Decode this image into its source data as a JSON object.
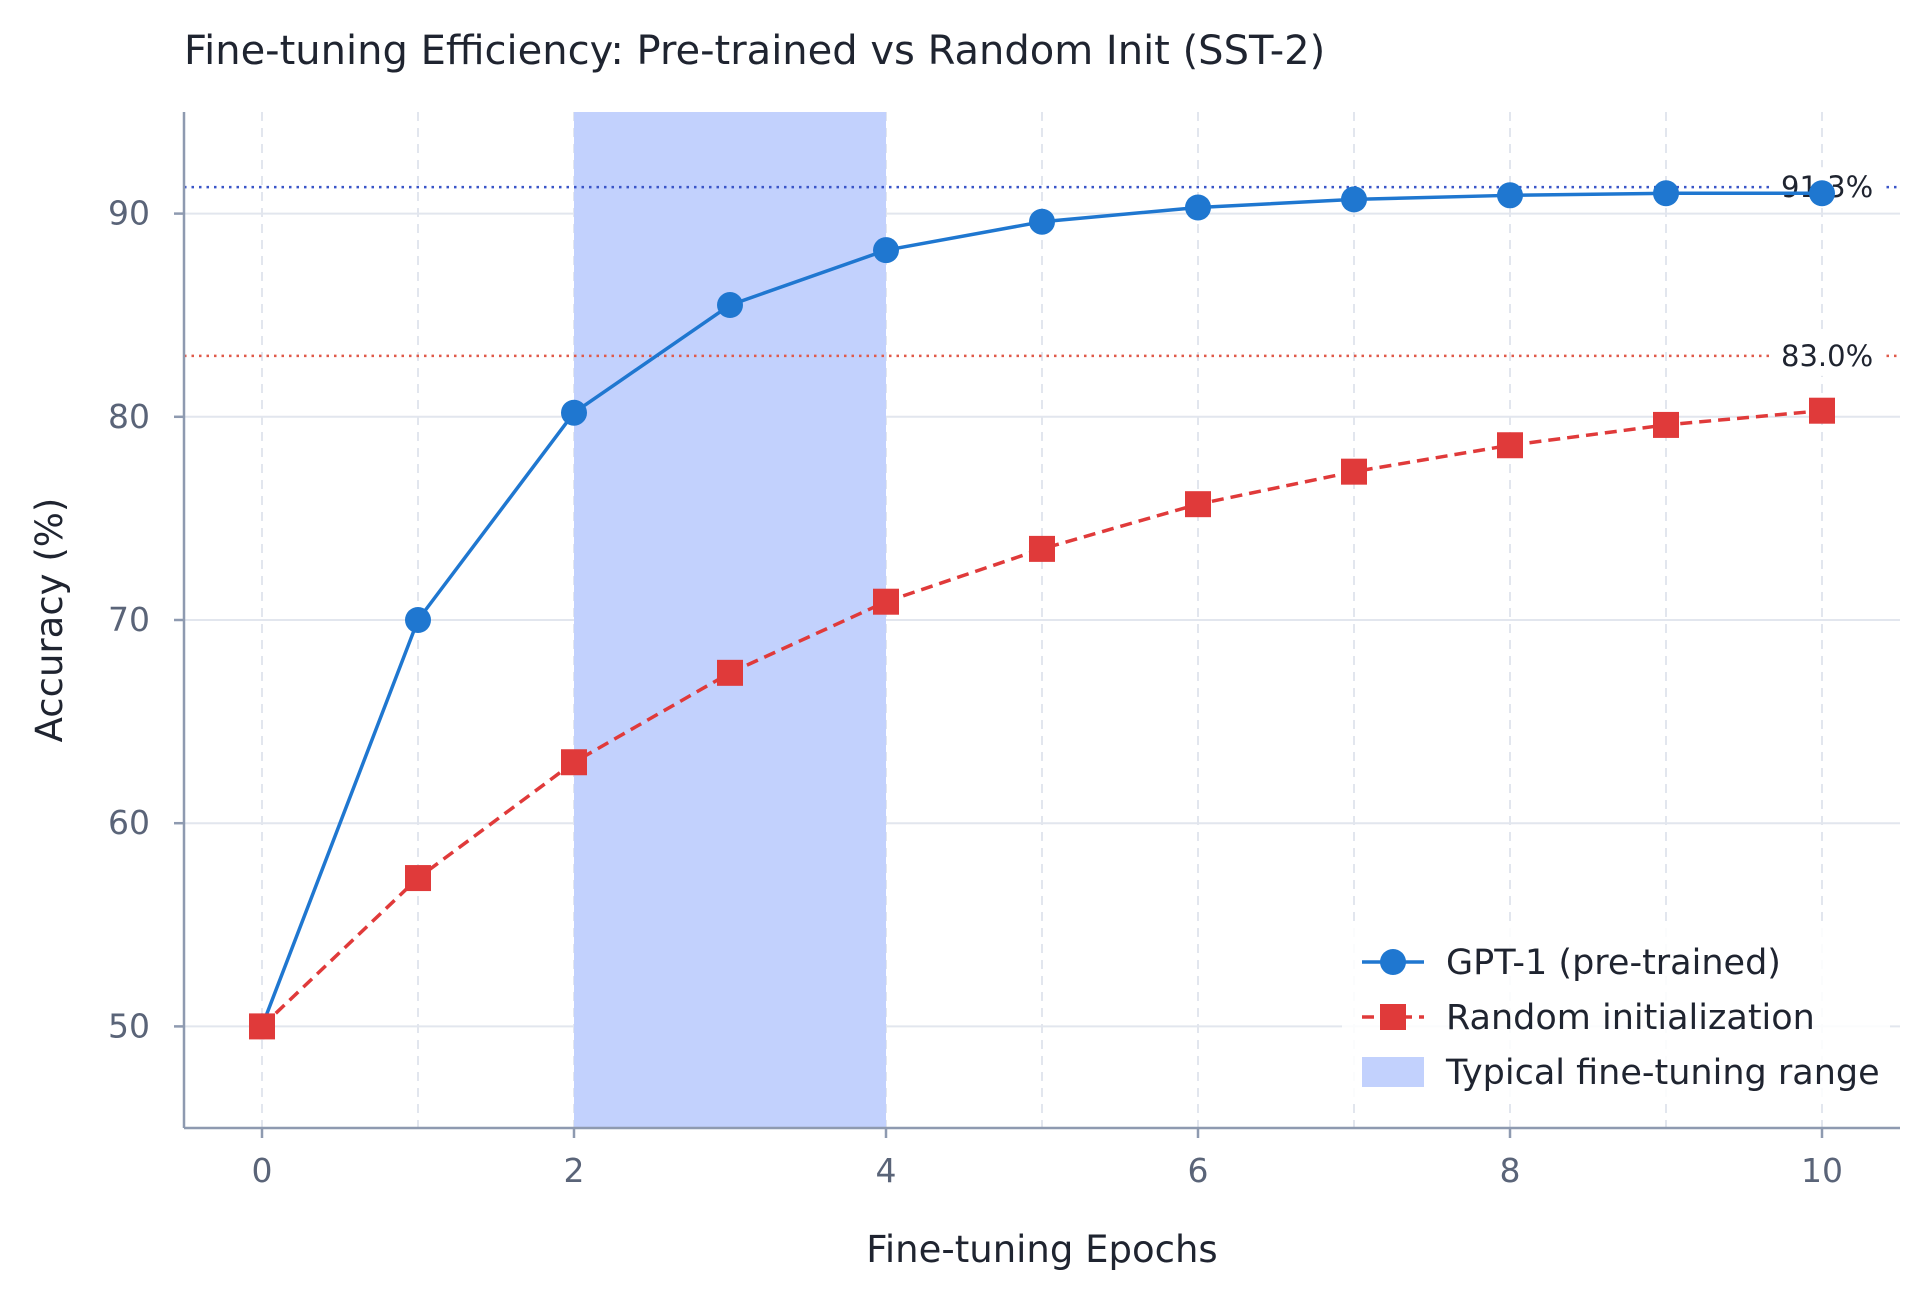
{
  "chart_data": {
    "type": "line",
    "title": "Fine-tuning Efficiency: Pre-trained vs Random Init (SST-2)",
    "xlabel": "Fine-tuning Epochs",
    "ylabel": "Accuracy (%)",
    "xlim": [
      -0.5,
      10.5
    ],
    "ylim": [
      45,
      95
    ],
    "xticks": [
      0,
      2,
      4,
      6,
      8,
      10
    ],
    "yticks": [
      50,
      60,
      70,
      80,
      90
    ],
    "grid": true,
    "legend_position": "lower-right",
    "x": [
      0,
      1,
      2,
      3,
      4,
      5,
      6,
      7,
      8,
      9,
      10
    ],
    "series": [
      {
        "name": "GPT-1 (pre-trained)",
        "color": "#1f77d0",
        "marker": "circle",
        "linestyle": "solid",
        "values": [
          50.0,
          70.0,
          80.2,
          85.5,
          88.2,
          89.6,
          90.3,
          90.7,
          90.9,
          91.0,
          91.0
        ]
      },
      {
        "name": "Random initialization",
        "color": "#e03a3a",
        "marker": "square",
        "linestyle": "dashed",
        "values": [
          50.0,
          57.3,
          63.0,
          67.4,
          70.9,
          73.5,
          75.7,
          77.3,
          78.6,
          79.6,
          80.3
        ]
      }
    ],
    "reference_lines": [
      {
        "y": 91.3,
        "label": "91.3%",
        "color": "#3a55c8"
      },
      {
        "y": 83.0,
        "label": "83.0%",
        "color": "#e05a4a"
      }
    ],
    "shaded_region": {
      "x_start": 2,
      "x_end": 4,
      "label": "Typical fine-tuning range",
      "color": "#c2d1fd"
    }
  }
}
